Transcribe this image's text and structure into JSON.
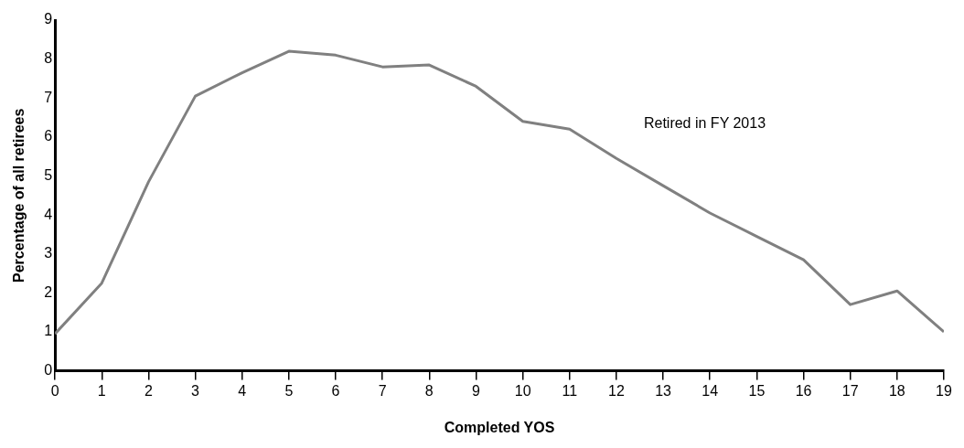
{
  "chart_data": {
    "type": "line",
    "xlabel": "Completed YOS",
    "ylabel": "Percentage of all retirees",
    "x": [
      0,
      1,
      2,
      3,
      4,
      5,
      6,
      7,
      8,
      9,
      10,
      11,
      12,
      13,
      14,
      15,
      16,
      17,
      18,
      19
    ],
    "series": [
      {
        "name": "Retired in FY 2013",
        "color": "#808080",
        "values": [
          0.95,
          2.25,
          4.85,
          7.05,
          7.65,
          8.2,
          8.1,
          7.8,
          7.85,
          7.3,
          6.4,
          6.2,
          5.45,
          4.75,
          4.05,
          3.45,
          2.85,
          1.7,
          2.05,
          1.0
        ]
      }
    ],
    "xlim": [
      0,
      19
    ],
    "xticks": [
      0,
      1,
      2,
      3,
      4,
      5,
      6,
      7,
      8,
      9,
      10,
      11,
      12,
      13,
      14,
      15,
      16,
      17,
      18,
      19
    ],
    "ylim": [
      0,
      9
    ],
    "yticks": [
      0,
      1,
      2,
      3,
      4,
      5,
      6,
      7,
      8,
      9
    ],
    "grid": false,
    "legend": false,
    "marker": "none",
    "line_style": "solid"
  }
}
